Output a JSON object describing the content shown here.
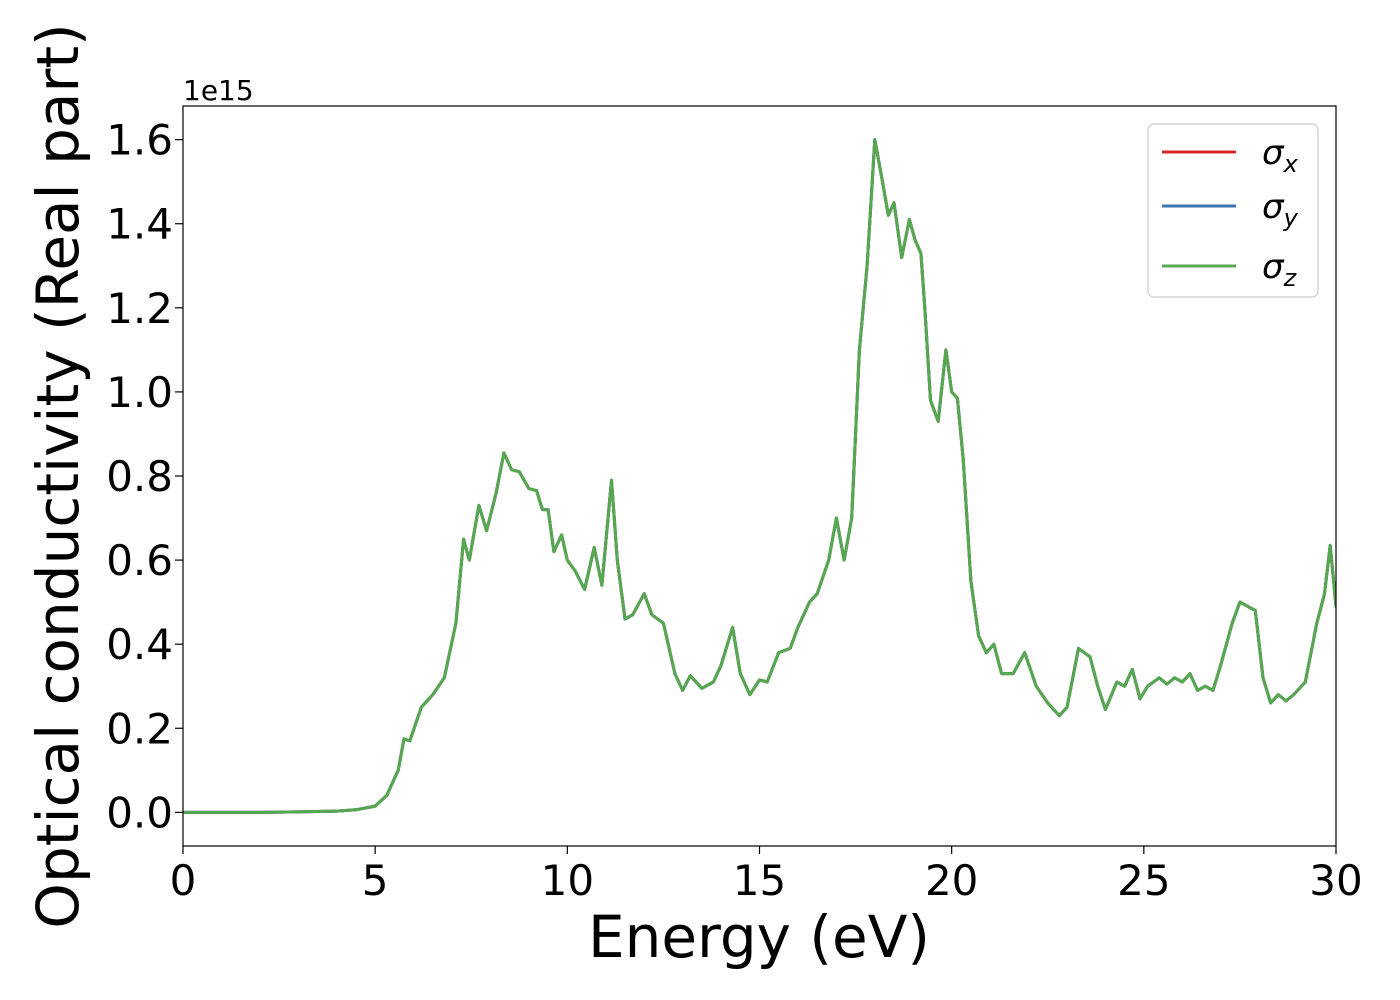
{
  "chart_data": {
    "type": "line",
    "xlabel": "Energy (eV)",
    "ylabel": "Optical conductivity (Real part)",
    "offset_text": "1e15",
    "y_scale_factor": 1000000000000000.0,
    "xlim": [
      0,
      30
    ],
    "ylim": [
      -0.08,
      1.68
    ],
    "xticks": [
      0,
      5,
      10,
      15,
      20,
      25,
      30
    ],
    "xtick_labels": [
      "0",
      "5",
      "10",
      "15",
      "20",
      "25",
      "30"
    ],
    "yticks": [
      0.0,
      0.2,
      0.4,
      0.6,
      0.8,
      1.0,
      1.2,
      1.4,
      1.6
    ],
    "ytick_labels": [
      "0.0",
      "0.2",
      "0.4",
      "0.6",
      "0.8",
      "1.0",
      "1.2",
      "1.4",
      "1.6"
    ],
    "grid": false,
    "legend_position": "top-right",
    "legend": [
      {
        "base": "σ",
        "sub": "x",
        "color": "#d62728"
      },
      {
        "base": "σ",
        "sub": "y",
        "color": "#3b75af"
      },
      {
        "base": "σ",
        "sub": "z",
        "color": "#55a84f"
      }
    ],
    "x": [
      0,
      1,
      2,
      3,
      4,
      4.5,
      5.0,
      5.3,
      5.6,
      5.75,
      5.9,
      6.2,
      6.5,
      6.8,
      7.1,
      7.3,
      7.45,
      7.7,
      7.9,
      8.15,
      8.35,
      8.55,
      8.75,
      9.0,
      9.2,
      9.35,
      9.5,
      9.65,
      9.85,
      10.0,
      10.2,
      10.45,
      10.7,
      10.9,
      11.15,
      11.3,
      11.5,
      11.7,
      12.0,
      12.2,
      12.5,
      12.8,
      13.0,
      13.2,
      13.5,
      13.8,
      14.0,
      14.3,
      14.5,
      14.75,
      15.0,
      15.2,
      15.5,
      15.8,
      16.0,
      16.3,
      16.5,
      16.8,
      17.0,
      17.2,
      17.4,
      17.6,
      17.8,
      18.0,
      18.2,
      18.35,
      18.5,
      18.7,
      18.9,
      19.05,
      19.2,
      19.3,
      19.45,
      19.65,
      19.85,
      20.0,
      20.15,
      20.3,
      20.5,
      20.7,
      20.9,
      21.1,
      21.3,
      21.6,
      21.9,
      22.2,
      22.5,
      22.8,
      23.0,
      23.3,
      23.6,
      23.8,
      24.0,
      24.3,
      24.5,
      24.7,
      24.9,
      25.1,
      25.4,
      25.6,
      25.8,
      26.0,
      26.2,
      26.4,
      26.6,
      26.8,
      27.0,
      27.3,
      27.5,
      27.7,
      27.9,
      28.1,
      28.3,
      28.5,
      28.7,
      28.9,
      29.2,
      29.5,
      29.7,
      29.85,
      30.0
    ],
    "series": [
      {
        "name": "σx",
        "color": "#d62728",
        "values": [
          0.0,
          0.0,
          0.0,
          0.001,
          0.003,
          0.006,
          0.015,
          0.04,
          0.1,
          0.175,
          0.17,
          0.25,
          0.28,
          0.32,
          0.45,
          0.65,
          0.6,
          0.73,
          0.67,
          0.76,
          0.855,
          0.815,
          0.81,
          0.77,
          0.765,
          0.72,
          0.72,
          0.62,
          0.66,
          0.6,
          0.575,
          0.53,
          0.63,
          0.54,
          0.79,
          0.6,
          0.46,
          0.47,
          0.52,
          0.47,
          0.45,
          0.33,
          0.29,
          0.325,
          0.295,
          0.31,
          0.35,
          0.44,
          0.33,
          0.28,
          0.315,
          0.31,
          0.38,
          0.39,
          0.44,
          0.5,
          0.52,
          0.6,
          0.7,
          0.6,
          0.7,
          1.1,
          1.3,
          1.6,
          1.5,
          1.42,
          1.45,
          1.32,
          1.41,
          1.36,
          1.33,
          1.2,
          0.98,
          0.93,
          1.1,
          1.0,
          0.985,
          0.84,
          0.55,
          0.42,
          0.38,
          0.4,
          0.33,
          0.33,
          0.38,
          0.3,
          0.26,
          0.23,
          0.25,
          0.39,
          0.37,
          0.3,
          0.245,
          0.31,
          0.3,
          0.34,
          0.27,
          0.3,
          0.32,
          0.305,
          0.32,
          0.31,
          0.33,
          0.29,
          0.3,
          0.29,
          0.35,
          0.45,
          0.5,
          0.49,
          0.48,
          0.32,
          0.26,
          0.28,
          0.265,
          0.28,
          0.31,
          0.45,
          0.52,
          0.635,
          0.49
        ]
      },
      {
        "name": "σy",
        "color": "#3b75af",
        "values": [
          0.0,
          0.0,
          0.0,
          0.001,
          0.003,
          0.006,
          0.015,
          0.04,
          0.1,
          0.175,
          0.17,
          0.25,
          0.28,
          0.32,
          0.45,
          0.65,
          0.6,
          0.73,
          0.67,
          0.76,
          0.855,
          0.815,
          0.81,
          0.77,
          0.765,
          0.72,
          0.72,
          0.62,
          0.66,
          0.6,
          0.575,
          0.53,
          0.63,
          0.54,
          0.79,
          0.6,
          0.46,
          0.47,
          0.52,
          0.47,
          0.45,
          0.33,
          0.29,
          0.325,
          0.295,
          0.31,
          0.35,
          0.44,
          0.33,
          0.28,
          0.315,
          0.31,
          0.38,
          0.39,
          0.44,
          0.5,
          0.52,
          0.6,
          0.7,
          0.6,
          0.7,
          1.1,
          1.3,
          1.6,
          1.5,
          1.42,
          1.45,
          1.32,
          1.41,
          1.36,
          1.33,
          1.2,
          0.98,
          0.93,
          1.1,
          1.0,
          0.985,
          0.84,
          0.55,
          0.42,
          0.38,
          0.4,
          0.33,
          0.33,
          0.38,
          0.3,
          0.26,
          0.23,
          0.25,
          0.39,
          0.37,
          0.3,
          0.245,
          0.31,
          0.3,
          0.34,
          0.27,
          0.3,
          0.32,
          0.305,
          0.32,
          0.31,
          0.33,
          0.29,
          0.3,
          0.29,
          0.35,
          0.45,
          0.5,
          0.49,
          0.48,
          0.32,
          0.26,
          0.28,
          0.265,
          0.28,
          0.31,
          0.45,
          0.52,
          0.635,
          0.49
        ]
      },
      {
        "name": "σz",
        "color": "#55a84f",
        "values": [
          0.0,
          0.0,
          0.0,
          0.001,
          0.003,
          0.006,
          0.015,
          0.04,
          0.1,
          0.175,
          0.17,
          0.25,
          0.28,
          0.32,
          0.45,
          0.65,
          0.6,
          0.73,
          0.67,
          0.76,
          0.855,
          0.815,
          0.81,
          0.77,
          0.765,
          0.72,
          0.72,
          0.62,
          0.66,
          0.6,
          0.575,
          0.53,
          0.63,
          0.54,
          0.79,
          0.6,
          0.46,
          0.47,
          0.52,
          0.47,
          0.45,
          0.33,
          0.29,
          0.325,
          0.295,
          0.31,
          0.35,
          0.44,
          0.33,
          0.28,
          0.315,
          0.31,
          0.38,
          0.39,
          0.44,
          0.5,
          0.52,
          0.6,
          0.7,
          0.6,
          0.7,
          1.1,
          1.3,
          1.6,
          1.5,
          1.42,
          1.45,
          1.32,
          1.41,
          1.36,
          1.33,
          1.2,
          0.98,
          0.93,
          1.1,
          1.0,
          0.985,
          0.84,
          0.55,
          0.42,
          0.38,
          0.4,
          0.33,
          0.33,
          0.38,
          0.3,
          0.26,
          0.23,
          0.25,
          0.39,
          0.37,
          0.3,
          0.245,
          0.31,
          0.3,
          0.34,
          0.27,
          0.3,
          0.32,
          0.305,
          0.32,
          0.31,
          0.33,
          0.29,
          0.3,
          0.29,
          0.35,
          0.45,
          0.5,
          0.49,
          0.48,
          0.32,
          0.26,
          0.28,
          0.265,
          0.28,
          0.31,
          0.45,
          0.52,
          0.635,
          0.49
        ]
      }
    ]
  }
}
